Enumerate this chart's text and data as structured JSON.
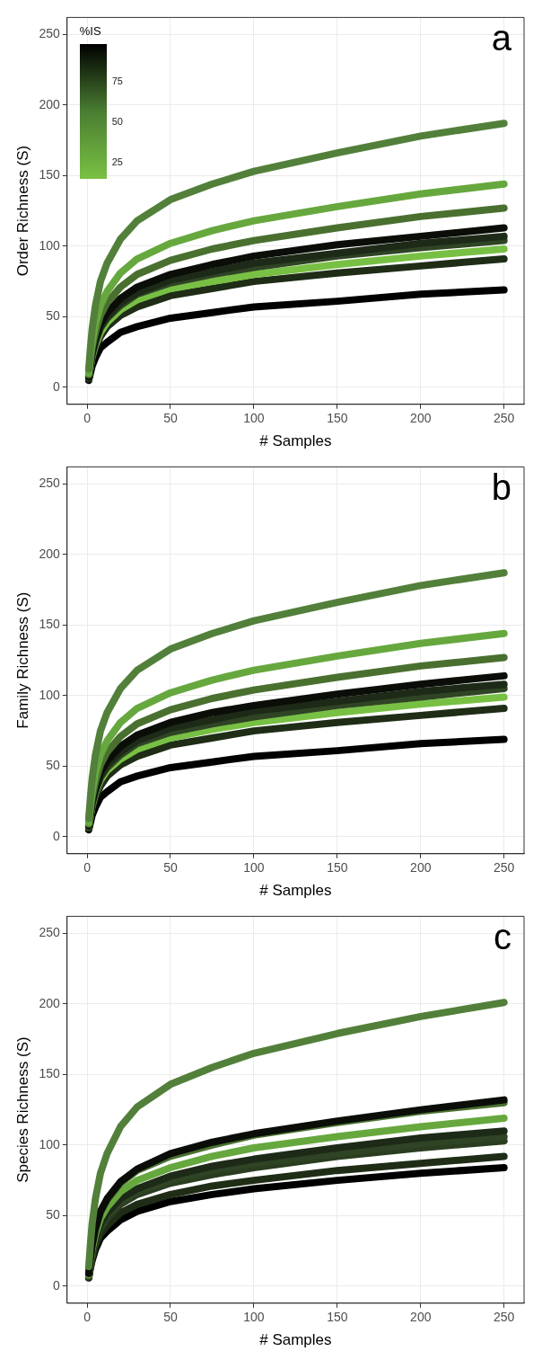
{
  "chart_data": [
    {
      "type": "line",
      "xlabel": "# Samples",
      "ylabel": "Order Richness (S)",
      "annotations": [
        "a",
        "75",
        "50",
        "25"
      ],
      "clabel": "%IS",
      "x": [
        1,
        2,
        3,
        5,
        8,
        12,
        20,
        30,
        50,
        75,
        100,
        150,
        200,
        250
      ],
      "xlim": [
        -12,
        262
      ],
      "xticks": [
        0,
        50,
        100,
        150,
        200,
        250
      ],
      "ylim": [
        -12,
        262
      ],
      "yticks": [
        0,
        50,
        100,
        150,
        200,
        250
      ],
      "grid": true,
      "line_style": "solid",
      "series": [
        {
          "color": "#52803a",
          "values": [
            13,
            28,
            41,
            58,
            75,
            88,
            105,
            118,
            133,
            144,
            153,
            166,
            178,
            187
          ]
        },
        {
          "color": "#66a83e",
          "values": [
            10,
            22,
            32,
            45,
            58,
            68,
            81,
            91,
            102,
            111,
            118,
            128,
            137,
            144
          ]
        },
        {
          "color": "#4a7030",
          "values": [
            9,
            19,
            28,
            39,
            51,
            60,
            71,
            80,
            90,
            98,
            104,
            113,
            121,
            127
          ]
        },
        {
          "color": "#0a0d08",
          "values": [
            8,
            17,
            25,
            35,
            45,
            53,
            63,
            71,
            80,
            87,
            93,
            101,
            107,
            113
          ]
        },
        {
          "color": "#1e2a18",
          "values": [
            7,
            16,
            24,
            33,
            43,
            50,
            60,
            67,
            76,
            82,
            88,
            95,
            102,
            107
          ]
        },
        {
          "color": "#2f4424",
          "values": [
            7,
            16,
            23,
            32,
            42,
            49,
            58,
            66,
            74,
            80,
            85,
            93,
            99,
            104
          ]
        },
        {
          "color": "#78c044",
          "values": [
            7,
            15,
            22,
            30,
            39,
            46,
            55,
            62,
            70,
            75,
            80,
            87,
            93,
            98
          ]
        },
        {
          "color": "#1f2d17",
          "values": [
            6,
            14,
            20,
            28,
            36,
            43,
            51,
            57,
            65,
            70,
            75,
            81,
            86,
            91
          ]
        },
        {
          "color": "#000000",
          "values": [
            5,
            10,
            15,
            21,
            28,
            32,
            39,
            43,
            49,
            53,
            57,
            61,
            66,
            69
          ]
        }
      ]
    },
    {
      "type": "line",
      "xlabel": "# Samples",
      "ylabel": "Family Richness (S)",
      "annotations": [
        "b"
      ],
      "x": [
        1,
        2,
        3,
        5,
        8,
        12,
        20,
        30,
        50,
        75,
        100,
        150,
        200,
        250
      ],
      "xlim": [
        -12,
        262
      ],
      "xticks": [
        0,
        50,
        100,
        150,
        200,
        250
      ],
      "ylim": [
        -12,
        262
      ],
      "yticks": [
        0,
        50,
        100,
        150,
        200,
        250
      ],
      "grid": true,
      "line_style": "solid",
      "series": [
        {
          "color": "#52803a",
          "values": [
            13,
            28,
            41,
            58,
            75,
            88,
            105,
            118,
            133,
            144,
            153,
            166,
            178,
            187
          ]
        },
        {
          "color": "#66a83e",
          "values": [
            10,
            22,
            32,
            45,
            58,
            68,
            81,
            91,
            102,
            111,
            118,
            128,
            137,
            144
          ]
        },
        {
          "color": "#4a7030",
          "values": [
            9,
            19,
            28,
            39,
            51,
            60,
            71,
            80,
            90,
            98,
            104,
            113,
            121,
            127
          ]
        },
        {
          "color": "#0a0d08",
          "values": [
            8,
            17,
            25,
            35,
            46,
            54,
            64,
            72,
            81,
            88,
            93,
            101,
            108,
            114
          ]
        },
        {
          "color": "#1e2a18",
          "values": [
            8,
            16,
            24,
            33,
            43,
            51,
            60,
            68,
            77,
            83,
            89,
            96,
            103,
            108
          ]
        },
        {
          "color": "#2f4424",
          "values": [
            7,
            16,
            23,
            32,
            42,
            49,
            58,
            66,
            74,
            80,
            85,
            93,
            99,
            105
          ]
        },
        {
          "color": "#78c044",
          "values": [
            7,
            15,
            22,
            31,
            40,
            47,
            55,
            62,
            70,
            76,
            81,
            88,
            94,
            99
          ]
        },
        {
          "color": "#1f2d17",
          "values": [
            6,
            14,
            20,
            28,
            36,
            43,
            51,
            57,
            65,
            70,
            75,
            81,
            86,
            91
          ]
        },
        {
          "color": "#000000",
          "values": [
            5,
            10,
            15,
            21,
            28,
            32,
            39,
            43,
            49,
            53,
            57,
            61,
            66,
            69
          ]
        }
      ]
    },
    {
      "type": "line",
      "xlabel": "# Samples",
      "ylabel": "Species Richness (S)",
      "annotations": [
        "c"
      ],
      "x": [
        1,
        2,
        3,
        5,
        8,
        12,
        20,
        30,
        50,
        75,
        100,
        150,
        200,
        250
      ],
      "xlim": [
        -12,
        262
      ],
      "xticks": [
        0,
        50,
        100,
        150,
        200,
        250
      ],
      "ylim": [
        -12,
        262
      ],
      "yticks": [
        0,
        50,
        100,
        150,
        200,
        250
      ],
      "grid": true,
      "line_style": "solid",
      "series": [
        {
          "color": "#52803a",
          "values": [
            14,
            30,
            44,
            62,
            80,
            94,
            113,
            127,
            143,
            155,
            165,
            179,
            191,
            201
          ]
        },
        {
          "color": "#0a0d08",
          "values": [
            9,
            20,
            29,
            41,
            53,
            62,
            74,
            83,
            94,
            102,
            108,
            117,
            125,
            132
          ]
        },
        {
          "color": "#4a7030",
          "values": [
            9,
            20,
            29,
            40,
            52,
            61,
            73,
            82,
            92,
            100,
            107,
            116,
            124,
            130
          ]
        },
        {
          "color": "#66a83e",
          "values": [
            8,
            18,
            26,
            37,
            48,
            56,
            67,
            75,
            84,
            92,
            98,
            106,
            113,
            119
          ]
        },
        {
          "color": "#1e2a18",
          "values": [
            8,
            17,
            24,
            34,
            44,
            52,
            62,
            69,
            78,
            85,
            90,
            98,
            105,
            110
          ]
        },
        {
          "color": "#2f4424",
          "values": [
            7,
            16,
            23,
            33,
            42,
            50,
            59,
            67,
            75,
            82,
            87,
            94,
            101,
            106
          ]
        },
        {
          "color": "#2a3d20",
          "values": [
            7,
            15,
            23,
            32,
            41,
            48,
            58,
            65,
            73,
            79,
            84,
            92,
            98,
            103
          ]
        },
        {
          "color": "#1f2d17",
          "values": [
            6,
            14,
            20,
            29,
            37,
            43,
            52,
            58,
            65,
            71,
            75,
            82,
            87,
            92
          ]
        },
        {
          "color": "#000000",
          "values": [
            6,
            13,
            18,
            26,
            34,
            39,
            47,
            53,
            60,
            65,
            69,
            75,
            80,
            84
          ]
        }
      ]
    }
  ]
}
